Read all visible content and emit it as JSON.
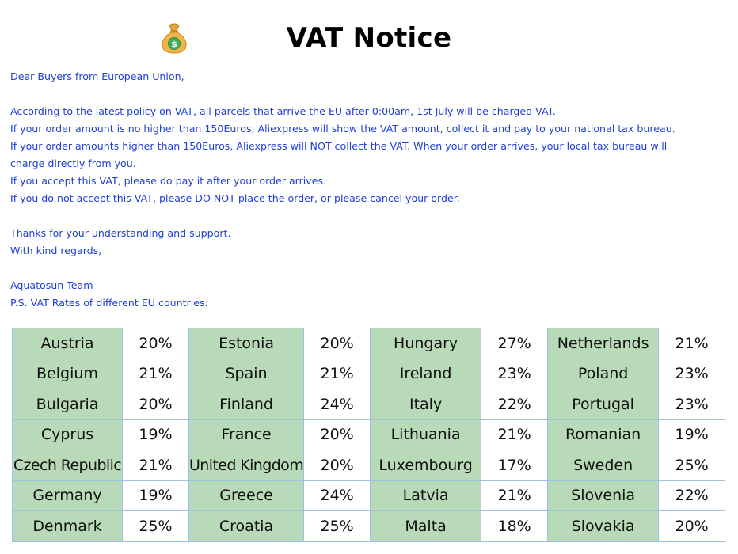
{
  "header": {
    "title": "VAT Notice"
  },
  "icons": {
    "header_icon": "money-bag-icon"
  },
  "letter": {
    "greeting": "Dear Buyers from European Union,",
    "lines": [
      "According to the latest policy on VAT, all parcels that arrive the EU after 0:00am, 1st July will be charged VAT.",
      "If your order amount is no higher than 150Euros, Aliexpress will show the VAT amount, collect it and pay to your national tax bureau.",
      "If your order amounts higher than 150Euros, Aliexpress will NOT collect the VAT. When your order arrives, your local tax bureau will",
      "charge directly from you.",
      "If you accept this VAT, please do pay it after your order arrives.",
      "If you do not accept this VAT, please DO NOT place the order, or please cancel your order."
    ],
    "thanks": "Thanks for your understanding and support.",
    "regards": "With kind regards,",
    "signature": "Aquatosun Team",
    "ps": "P.S. VAT Rates of different EU countries:"
  },
  "colors": {
    "text_blue": "#1f3fd6",
    "country_cell_bg": "#b9dab8",
    "border": "#9bc3df"
  },
  "vat_table": {
    "rows": [
      [
        [
          "Austria",
          "20%"
        ],
        [
          "Estonia",
          "20%"
        ],
        [
          "Hungary",
          "27%"
        ],
        [
          "Netherlands",
          "21%"
        ]
      ],
      [
        [
          "Belgium",
          "21%"
        ],
        [
          "Spain",
          "21%"
        ],
        [
          "Ireland",
          "23%"
        ],
        [
          "Poland",
          "23%"
        ]
      ],
      [
        [
          "Bulgaria",
          "20%"
        ],
        [
          "Finland",
          "24%"
        ],
        [
          "Italy",
          "22%"
        ],
        [
          "Portugal",
          "23%"
        ]
      ],
      [
        [
          "Cyprus",
          "19%"
        ],
        [
          "France",
          "20%"
        ],
        [
          "Lithuania",
          "21%"
        ],
        [
          "Romanian",
          "19%"
        ]
      ],
      [
        [
          "Czech Republic",
          "21%"
        ],
        [
          "United Kingdom",
          "20%"
        ],
        [
          "Luxembourg",
          "17%"
        ],
        [
          "Sweden",
          "25%"
        ]
      ],
      [
        [
          "Germany",
          "19%"
        ],
        [
          "Greece",
          "24%"
        ],
        [
          "Latvia",
          "21%"
        ],
        [
          "Slovenia",
          "22%"
        ]
      ],
      [
        [
          "Denmark",
          "25%"
        ],
        [
          "Croatia",
          "25%"
        ],
        [
          "Malta",
          "18%"
        ],
        [
          "Slovakia",
          "20%"
        ]
      ]
    ]
  }
}
